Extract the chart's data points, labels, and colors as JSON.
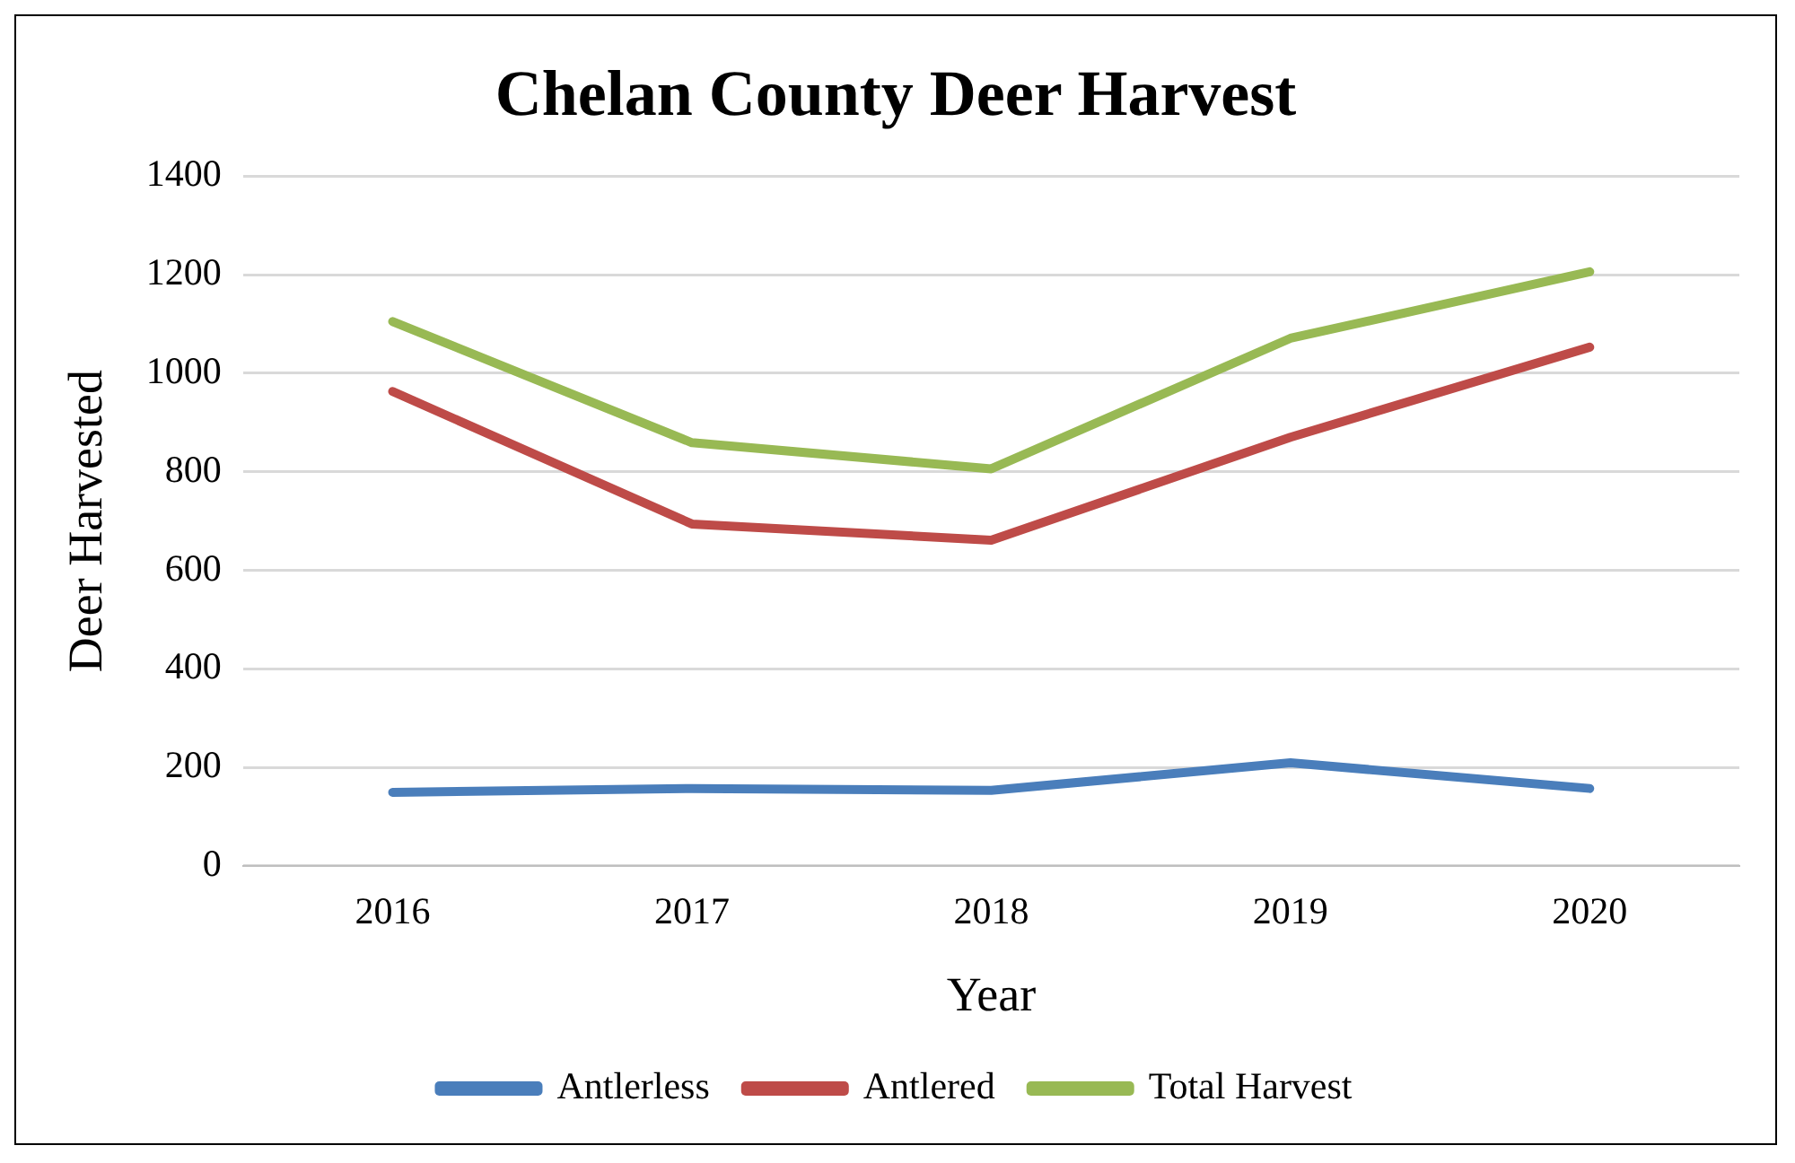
{
  "chart_data": {
    "type": "line",
    "title": "Chelan County Deer Harvest",
    "xlabel": "Year",
    "ylabel": "Deer Harvested",
    "categories": [
      "2016",
      "2017",
      "2018",
      "2019",
      "2020"
    ],
    "series": [
      {
        "name": "Antlerless",
        "color": "#4a7ebb",
        "values": [
          149,
          157,
          153,
          209,
          157
        ]
      },
      {
        "name": "Antlered",
        "color": "#be4b48",
        "values": [
          963,
          694,
          661,
          870,
          1053
        ]
      },
      {
        "name": "Total Harvest",
        "color": "#98b954",
        "values": [
          1105,
          859,
          806,
          1071,
          1206
        ]
      }
    ],
    "ylim": [
      0,
      1400
    ],
    "yticks": [
      0,
      200,
      400,
      600,
      800,
      1000,
      1200,
      1400
    ],
    "grid": "y",
    "legend": "bottom",
    "marker": "none",
    "line_style": "solid"
  }
}
